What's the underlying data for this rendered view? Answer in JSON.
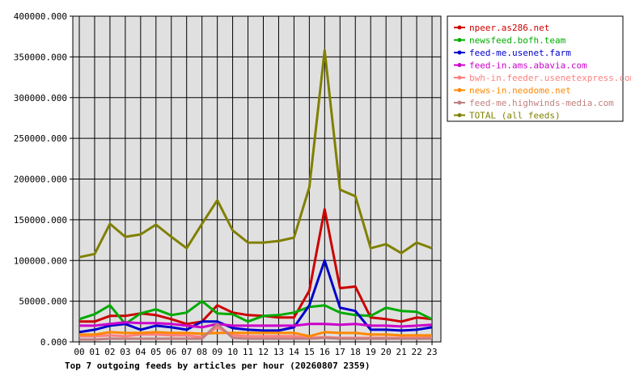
{
  "chart_data": {
    "type": "line",
    "title": "Top 7 outgoing feeds by articles per hour (20260807 2359)",
    "xlabel": "",
    "ylabel": "",
    "ylim": [
      0,
      400000
    ],
    "yticks": [
      "0.000",
      "50000.000",
      "100000.000",
      "150000.000",
      "200000.000",
      "250000.000",
      "300000.000",
      "350000.000",
      "400000.000"
    ],
    "grid": true,
    "legend_position": "top-right",
    "x": [
      "00",
      "01",
      "02",
      "03",
      "04",
      "05",
      "06",
      "07",
      "08",
      "09",
      "10",
      "11",
      "12",
      "13",
      "14",
      "15",
      "16",
      "17",
      "18",
      "19",
      "20",
      "21",
      "22",
      "23"
    ],
    "series": [
      {
        "name": "npeer.as286.net",
        "color": "#cc0000",
        "values": [
          25000,
          25000,
          32000,
          32000,
          35000,
          33000,
          28000,
          22000,
          25000,
          45000,
          36000,
          33000,
          32000,
          30000,
          30000,
          63000,
          163000,
          66000,
          68000,
          30000,
          28000,
          25000,
          30000,
          28000
        ]
      },
      {
        "name": "newsfeed.bofh.team",
        "color": "#00aa00",
        "values": [
          28000,
          34000,
          45000,
          22000,
          35000,
          40000,
          33000,
          36000,
          50000,
          35000,
          34000,
          25000,
          32000,
          33000,
          36000,
          43000,
          45000,
          36000,
          33000,
          32000,
          42000,
          38000,
          37000,
          28000
        ]
      },
      {
        "name": "feed-me.usenet.farm",
        "color": "#0000cc",
        "values": [
          12000,
          15000,
          20000,
          22000,
          15000,
          20000,
          18000,
          15000,
          25000,
          25000,
          17000,
          15000,
          14000,
          14000,
          18000,
          45000,
          100000,
          42000,
          38000,
          15000,
          15000,
          14000,
          15000,
          18000
        ]
      },
      {
        "name": "feed-in.ams.abavia.com",
        "color": "#cc00cc",
        "values": [
          20000,
          20000,
          22000,
          24000,
          23000,
          23000,
          22000,
          20000,
          18000,
          22000,
          20000,
          20000,
          20000,
          20000,
          20000,
          22000,
          22000,
          21000,
          22000,
          20000,
          20000,
          19000,
          20000,
          21000
        ]
      },
      {
        "name": "bwh-in.feeder.usenetexpress.com",
        "color": "#ff8080",
        "values": [
          7000,
          7000,
          8000,
          7000,
          9000,
          9000,
          8000,
          8000,
          6000,
          18000,
          8000,
          7000,
          7000,
          7000,
          7000,
          5000,
          6000,
          5000,
          5000,
          5000,
          5000,
          5000,
          5000,
          6000
        ]
      },
      {
        "name": "news-in.neodome.net",
        "color": "#ff8800",
        "values": [
          9000,
          9000,
          12000,
          11000,
          11000,
          12000,
          11000,
          11000,
          10000,
          11000,
          11000,
          11000,
          11000,
          11000,
          11000,
          7000,
          12000,
          11000,
          11000,
          9000,
          9000,
          8000,
          8000,
          8000
        ]
      },
      {
        "name": "feed-me.highwinds-media.com",
        "color": "#c08080",
        "values": [
          3000,
          3000,
          4000,
          4000,
          4000,
          4000,
          4000,
          4000,
          4000,
          22000,
          5000,
          4000,
          4000,
          4000,
          4000,
          4000,
          5000,
          4000,
          4000,
          4000,
          4000,
          4000,
          4000,
          4000
        ]
      },
      {
        "name": "TOTAL (all feeds)",
        "color": "#808000",
        "values": [
          104000,
          108000,
          145000,
          129000,
          132000,
          144000,
          129000,
          115000,
          145000,
          174000,
          137000,
          122000,
          122000,
          124000,
          128000,
          190000,
          358000,
          187000,
          179000,
          115000,
          120000,
          109000,
          122000,
          115000
        ]
      }
    ]
  }
}
